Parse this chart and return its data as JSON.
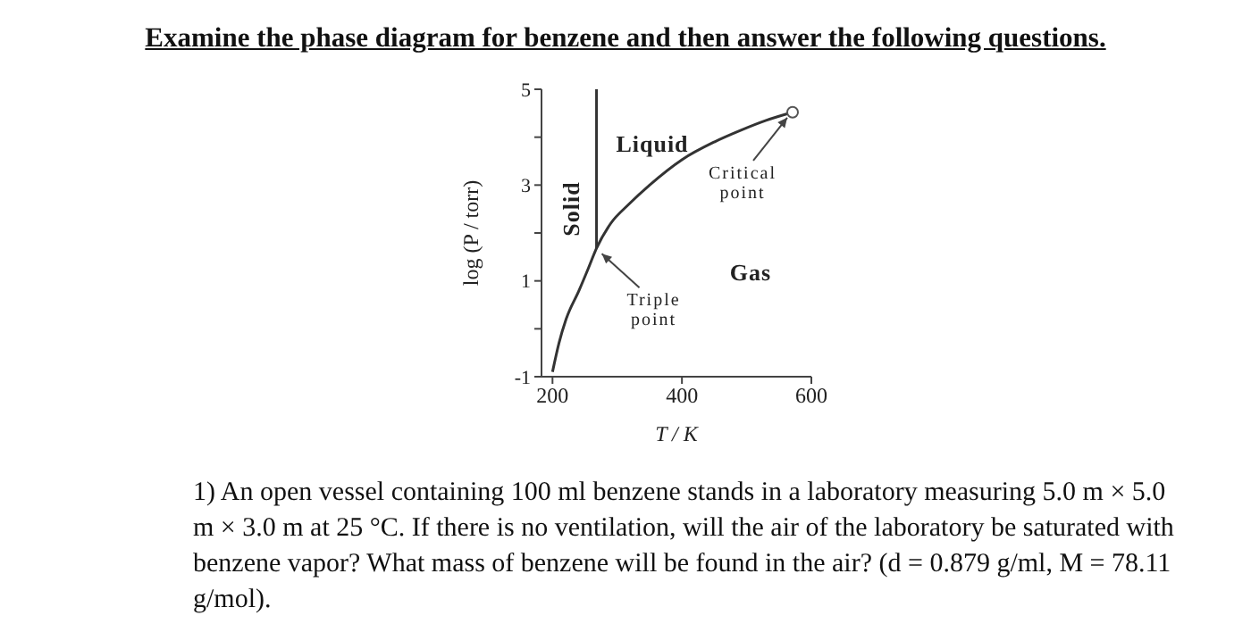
{
  "chart_data": {
    "type": "line",
    "title": "Examine the phase diagram for benzene and then answer the following questions.",
    "xlabel": "T / K",
    "ylabel": "log (P / torr)",
    "series": [
      {
        "color": "#333333",
        "x": [
          200,
          210,
          221,
          241,
          255,
          268,
          290,
          318,
          350,
          400,
          450,
          492,
          530,
          571
        ],
        "values": [
          -0.9,
          -0.3,
          0.2,
          0.8,
          1.25,
          1.68,
          2.2,
          2.6,
          3.0,
          3.53,
          3.9,
          4.15,
          4.35,
          4.52
        ]
      },
      {
        "color": "#333333",
        "x": [
          268,
          268
        ],
        "values": [
          1.68,
          5
        ]
      },
      {
        "type": "scatter",
        "color": "#555555",
        "marker": "circle",
        "x": [
          571
        ],
        "values": [
          4.52
        ]
      }
    ],
    "annotations": [
      "Liquid",
      "Solid",
      "Gas",
      {
        "text": "Critical point",
        "x": 571,
        "y": 4.52
      },
      {
        "text": "Triple point",
        "x": 268,
        "y": 1.68
      },
      "1)  An open vessel containing 100 ml benzene stands in a laboratory measuring 5.0 m × 5.0 m × 3.0 m at 25 °C. If there is no ventilation, will the air of the laboratory be saturated with benzene vapor? What mass of benzene will be found in the air? (d = 0.879 g/ml, M = 78.11 g/mol)."
    ],
    "xlim": [
      183,
      600
    ],
    "xticks": [
      200,
      400,
      600
    ],
    "ylim": [
      -1,
      5
    ],
    "yticks": [
      -1,
      {
        "value": 0,
        "label": null
      },
      1,
      {
        "value": 2,
        "label": null
      },
      3,
      {
        "value": 4,
        "label": null
      },
      5
    ],
    "line_style": "solid"
  }
}
